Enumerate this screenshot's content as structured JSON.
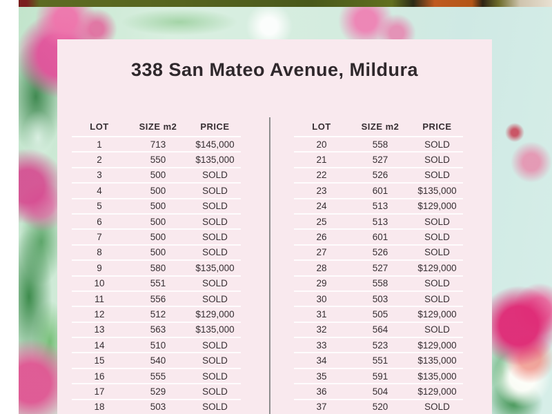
{
  "page": {
    "title": "338 San Mateo Avenue, Mildura"
  },
  "table": {
    "headers": [
      "LOT",
      "SIZE m2",
      "PRICE"
    ],
    "left": {
      "rows": [
        [
          "1",
          "713",
          "$145,000"
        ],
        [
          "2",
          "550",
          "$135,000"
        ],
        [
          "3",
          "500",
          "SOLD"
        ],
        [
          "4",
          "500",
          "SOLD"
        ],
        [
          "5",
          "500",
          "SOLD"
        ],
        [
          "6",
          "500",
          "SOLD"
        ],
        [
          "7",
          "500",
          "SOLD"
        ],
        [
          "8",
          "500",
          "SOLD"
        ],
        [
          "9",
          "580",
          "$135,000"
        ],
        [
          "10",
          "551",
          "SOLD"
        ],
        [
          "11",
          "556",
          "SOLD"
        ],
        [
          "12",
          "512",
          "$129,000"
        ],
        [
          "13",
          "563",
          "$135,000"
        ],
        [
          "14",
          "510",
          "SOLD"
        ],
        [
          "15",
          "540",
          "SOLD"
        ],
        [
          "16",
          "555",
          "SOLD"
        ],
        [
          "17",
          "529",
          "SOLD"
        ],
        [
          "18",
          "503",
          "SOLD"
        ]
      ]
    },
    "right": {
      "rows": [
        [
          "20",
          "558",
          "SOLD"
        ],
        [
          "21",
          "527",
          "SOLD"
        ],
        [
          "22",
          "526",
          "SOLD"
        ],
        [
          "23",
          "601",
          "$135,000"
        ],
        [
          "24",
          "513",
          "$129,000"
        ],
        [
          "25",
          "513",
          "SOLD"
        ],
        [
          "26",
          "601",
          "SOLD"
        ],
        [
          "27",
          "526",
          "SOLD"
        ],
        [
          "28",
          "527",
          "$129,000"
        ],
        [
          "29",
          "558",
          "SOLD"
        ],
        [
          "30",
          "503",
          "SOLD"
        ],
        [
          "31",
          "505",
          "$129,000"
        ],
        [
          "32",
          "564",
          "SOLD"
        ],
        [
          "33",
          "523",
          "$129,000"
        ],
        [
          "34",
          "551",
          "$135,000"
        ],
        [
          "35",
          "591",
          "$135,000"
        ],
        [
          "36",
          "504",
          "$129,000"
        ],
        [
          "37",
          "520",
          "SOLD"
        ]
      ]
    }
  },
  "colors": {
    "card_background": "#f9e9ee",
    "text": "#362e32",
    "divider": "#8d8d8d",
    "row_separator": "#ffffff",
    "left_strip": "#ffffff",
    "background_mint": "#d4ecdf",
    "flower_pink": "#e2529b"
  }
}
